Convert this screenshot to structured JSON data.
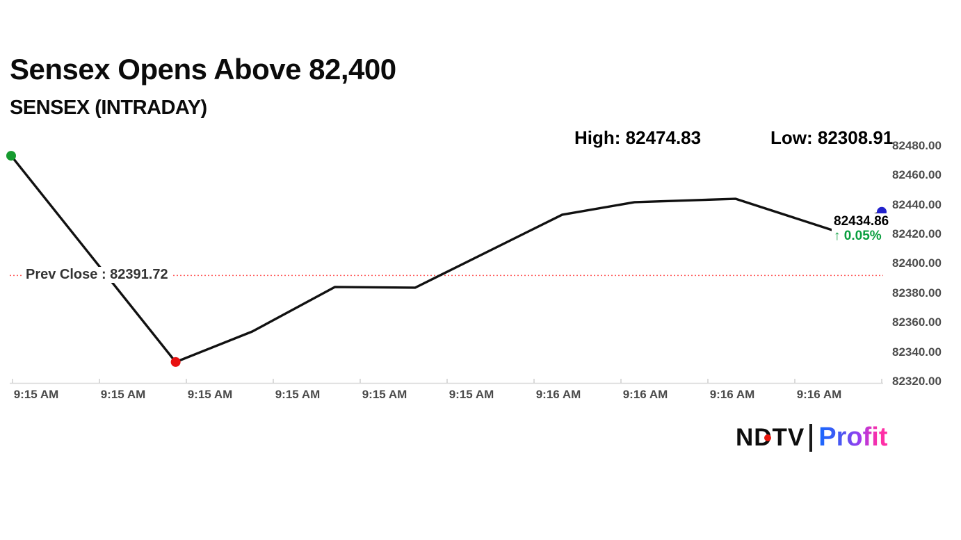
{
  "header": {
    "title": "Sensex Opens Above 82,400",
    "subtitle": "SENSEX (INTRADAY)"
  },
  "stats": {
    "high_label": "High: 82474.83",
    "low_label": "Low: 82308.91"
  },
  "chart_data": {
    "type": "line",
    "title": "SENSEX (INTRADAY)",
    "x_axis": {
      "tick_labels": [
        "9:15 AM",
        "9:15 AM",
        "9:15 AM",
        "9:15 AM",
        "9:15 AM",
        "9:15 AM",
        "9:16 AM",
        "9:16 AM",
        "9:16 AM",
        "9:16 AM"
      ]
    },
    "y_axis": {
      "min": 82320,
      "max": 82480,
      "tick_interval": 20,
      "tick_labels": [
        "82480.00",
        "82460.00",
        "82440.00",
        "82420.00",
        "82400.00",
        "82380.00",
        "82360.00",
        "82340.00",
        "82320.00"
      ]
    },
    "grid": false,
    "legend": false,
    "high": 82474.83,
    "low": 82308.91,
    "prev_close": {
      "value": 82391.72,
      "label": "Prev Close : 82391.72"
    },
    "last": {
      "price": "82434.86",
      "arrow": "↑",
      "change_pct": "0.05%",
      "direction": "up"
    },
    "series": [
      {
        "name": "SENSEX",
        "points": [
          {
            "xf": 0.0,
            "value": 82472.9,
            "marker": "open"
          },
          {
            "xf": 0.189,
            "value": 82333.0,
            "marker": "low"
          },
          {
            "xf": 0.277,
            "value": 82353.7
          },
          {
            "xf": 0.372,
            "value": 82383.9
          },
          {
            "xf": 0.464,
            "value": 82383.4
          },
          {
            "xf": 0.633,
            "value": 82432.9
          },
          {
            "xf": 0.716,
            "value": 82441.4
          },
          {
            "xf": 0.832,
            "value": 82443.7
          },
          {
            "xf": 0.943,
            "value": 82422.5
          },
          {
            "xf": 1.0,
            "value": 82434.86,
            "marker": "last"
          }
        ]
      }
    ],
    "colors": {
      "line": "#111111",
      "open": "#169b2f",
      "low": "#e81010",
      "last": "#2222cc",
      "prev_close": "#ff5a5a",
      "axis": "#d9d9d9",
      "tick": "#cfcfcf",
      "change_up": "#0a9e3f"
    }
  },
  "footer": {
    "logo": {
      "ndtv": "NDTV",
      "divider_dot_color": "#e8160c",
      "profit": "Profit"
    }
  }
}
